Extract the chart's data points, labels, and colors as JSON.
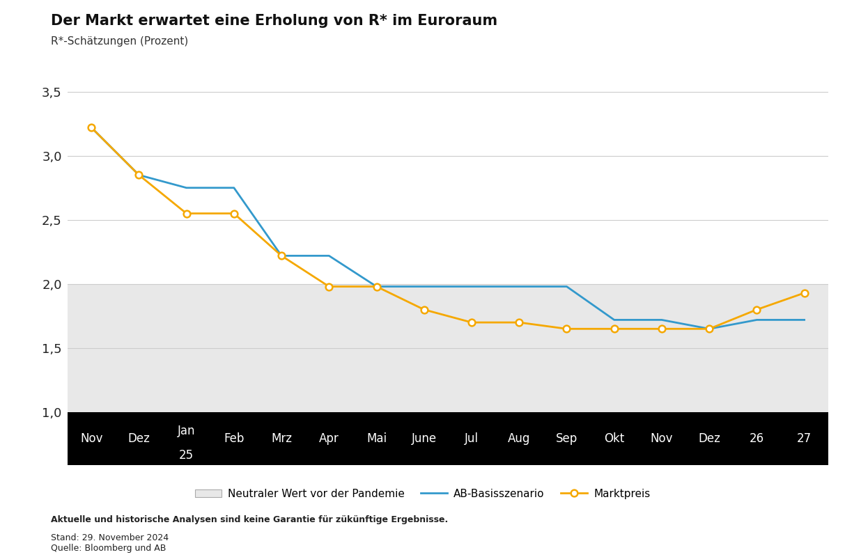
{
  "title": "Der Markt erwartet eine Erholung von R* im Euroraum",
  "subtitle": "R*-Schätzungen (Prozent)",
  "x_labels": [
    "Nov",
    "Dez",
    "Jan\n25",
    "Feb",
    "Mrz",
    "Apr",
    "Mai",
    "June",
    "Jul",
    "Aug",
    "Sep",
    "Okt",
    "Nov",
    "Dez",
    "26",
    "27"
  ],
  "ab_line": [
    3.22,
    2.85,
    2.75,
    2.75,
    2.22,
    2.22,
    1.98,
    1.98,
    1.98,
    1.98,
    1.98,
    1.72,
    1.72,
    1.65,
    1.72,
    1.72
  ],
  "market_line": [
    3.22,
    2.85,
    2.55,
    2.55,
    2.22,
    1.98,
    1.98,
    1.8,
    1.7,
    1.7,
    1.65,
    1.65,
    1.65,
    1.65,
    1.8,
    1.93
  ],
  "ab_color": "#3399cc",
  "market_color": "#f5a800",
  "neutral_band_low": 1.0,
  "neutral_band_high": 2.0,
  "neutral_band_color": "#e8e8e8",
  "ylim_low": 1.0,
  "ylim_high": 3.65,
  "yticks": [
    1.0,
    1.5,
    2.0,
    2.5,
    3.0,
    3.5
  ],
  "ytick_labels": [
    "1,0",
    "1,5",
    "2,0",
    "2,5",
    "3,0",
    "3,5"
  ],
  "background_color": "#ffffff",
  "plot_bg_color": "#ffffff",
  "x_axis_bg_color": "#000000",
  "x_label_color": "#ffffff",
  "grid_color": "#cccccc",
  "footnote_bold": "Aktuelle und historische Analysen sind keine Garantie für zükünftige Ergebnisse.",
  "footnote_normal": "Stand: 29. November 2024\nQuelle: Bloomberg und AB",
  "legend_neutral": "Neutraler Wert vor der Pandemie",
  "legend_ab": "AB-Basisszenario",
  "legend_market": "Marktpreis"
}
